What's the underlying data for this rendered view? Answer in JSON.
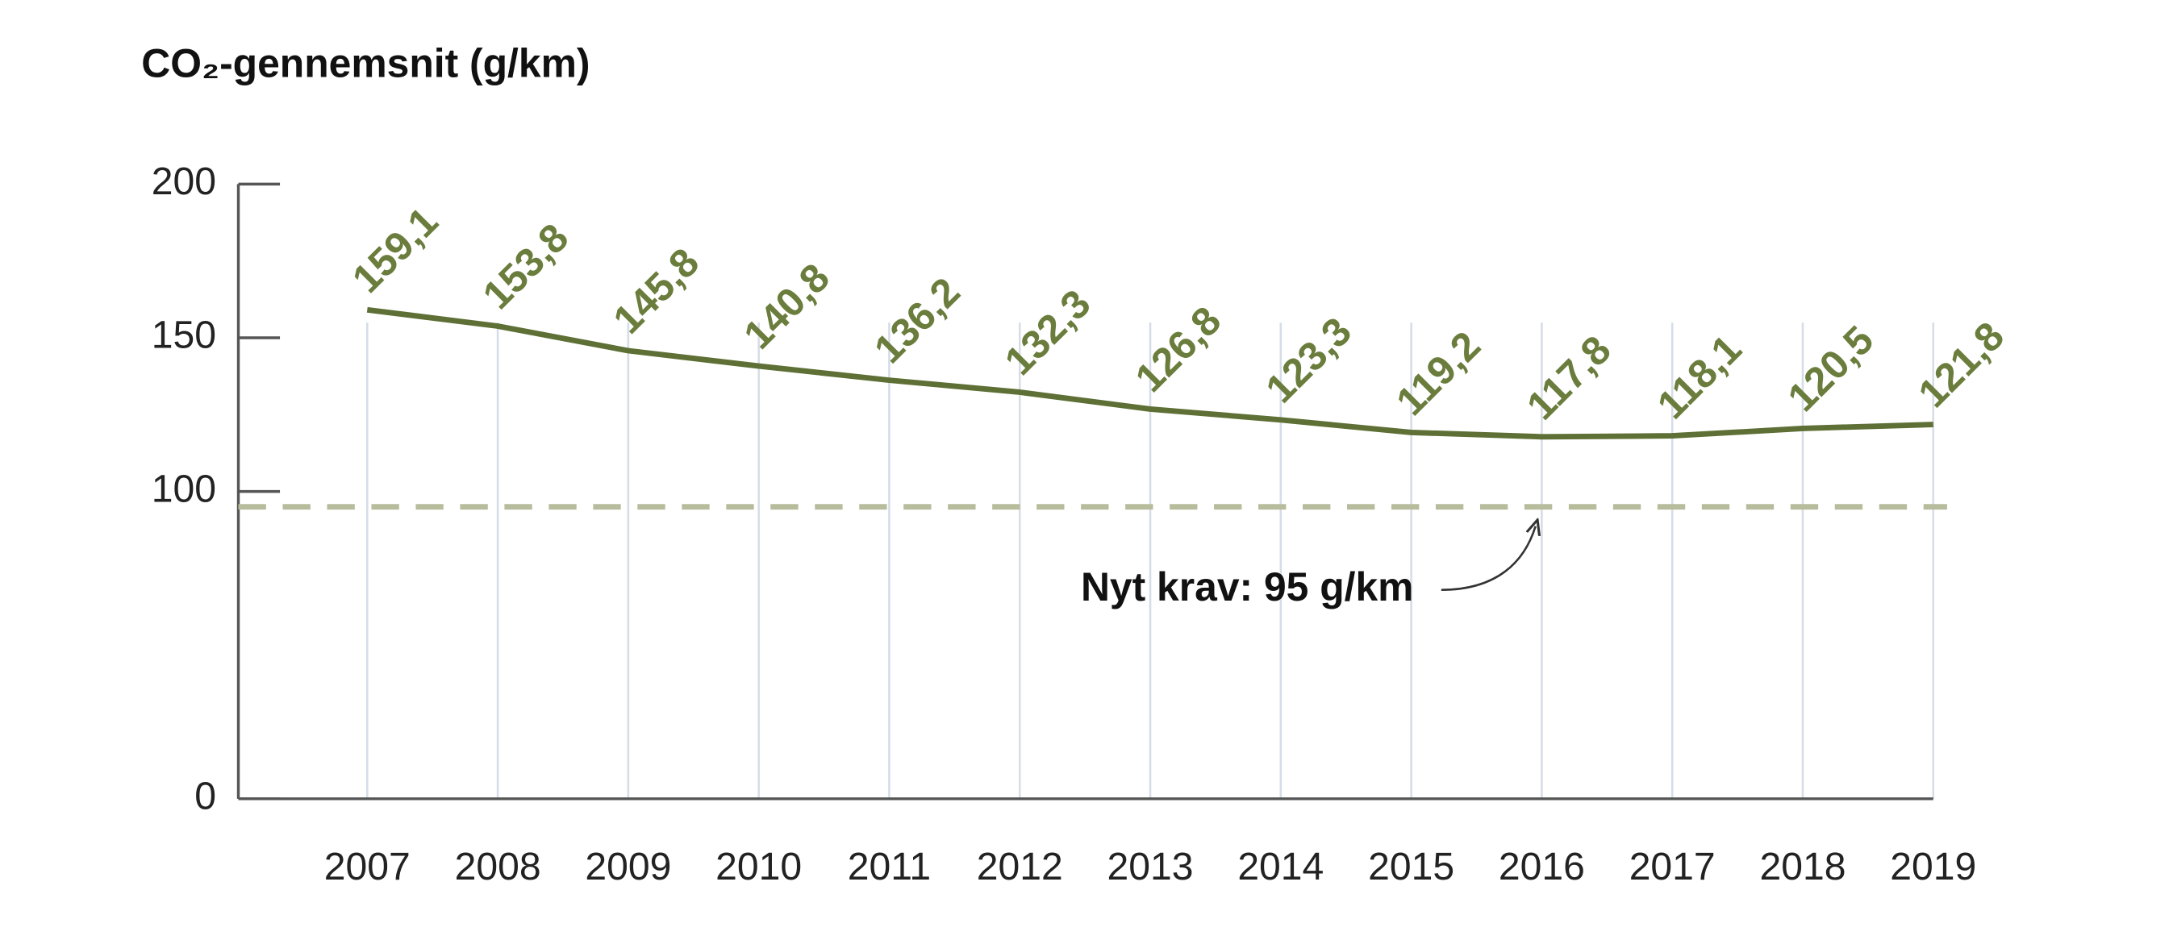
{
  "chart_data": {
    "type": "line",
    "title": "CO₂-gennemsnit (g/km)",
    "categories": [
      "2007",
      "2008",
      "2009",
      "2010",
      "2011",
      "2012",
      "2013",
      "2014",
      "2015",
      "2016",
      "2017",
      "2018",
      "2019"
    ],
    "series": [
      {
        "color": "#5e7035",
        "values": [
          159.1,
          153.8,
          145.8,
          140.8,
          136.2,
          132.3,
          126.8,
          123.3,
          119.2,
          117.8,
          118.1,
          120.5,
          121.8
        ],
        "value_labels": [
          "159,1",
          "153,8",
          "145,8",
          "140,8",
          "136,2",
          "132,3",
          "126,8",
          "123,3",
          "119,2",
          "117,8",
          "118,1",
          "120,5",
          "121,8"
        ]
      }
    ],
    "ylim": [
      0,
      200
    ],
    "yticks": [
      0,
      100,
      150,
      200
    ],
    "grid": true,
    "reference_line": {
      "value": 95,
      "label": "Nyt krav: 95 g/km",
      "color": "#b7bd9c"
    }
  }
}
